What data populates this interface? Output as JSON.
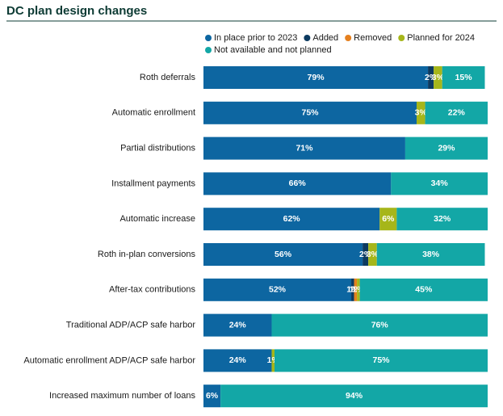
{
  "chart_data": {
    "type": "stacked-barh",
    "title": "DC plan design changes",
    "categories": [
      "Roth deferrals",
      "Automatic enrollment",
      "Partial distributions",
      "Installment payments",
      "Automatic increase",
      "Roth in-plan conversions",
      "After-tax contributions",
      "Traditional ADP/ACP safe harbor",
      "Automatic enrollment ADP/ACP safe harbor",
      "Increased maximum number of loans"
    ],
    "xlim": [
      0,
      100
    ],
    "series": [
      {
        "name": "In place prior to 2023",
        "color": "#0d66a1",
        "values": [
          79,
          75,
          71,
          66,
          62,
          56,
          52,
          24,
          24,
          6
        ],
        "value_labels": [
          "79%",
          "75%",
          "71%",
          "66%",
          "62%",
          "56%",
          "52%",
          "24%",
          "24%",
          "6%"
        ]
      },
      {
        "name": "Added",
        "color": "#0c3a60",
        "values": [
          2,
          0,
          0,
          0,
          0,
          2,
          1,
          0,
          0,
          0
        ],
        "value_labels": [
          "2%",
          null,
          null,
          null,
          null,
          "2%",
          "1%",
          null,
          null,
          null
        ]
      },
      {
        "name": "Removed",
        "color": "#e5801f",
        "values": [
          0,
          0,
          0,
          0,
          0,
          0,
          1,
          0,
          0,
          0
        ],
        "value_labels": [
          null,
          null,
          null,
          null,
          null,
          null,
          "1%",
          null,
          null,
          null
        ]
      },
      {
        "name": "Planned for 2024",
        "color": "#a6b61a",
        "values": [
          3,
          3,
          0,
          0,
          6,
          3,
          1,
          0,
          1,
          0
        ],
        "value_labels": [
          "3%",
          "3%",
          null,
          null,
          "6%",
          "3%",
          "1%",
          null,
          "1%",
          null
        ]
      },
      {
        "name": "Not available and not planned",
        "color": "#13a7a6",
        "values": [
          15,
          22,
          29,
          34,
          32,
          38,
          45,
          76,
          75,
          94
        ],
        "value_labels": [
          "15%",
          "22%",
          "29%",
          "34%",
          "32%",
          "38%",
          "45%",
          "76%",
          "75%",
          "94%"
        ]
      }
    ]
  }
}
